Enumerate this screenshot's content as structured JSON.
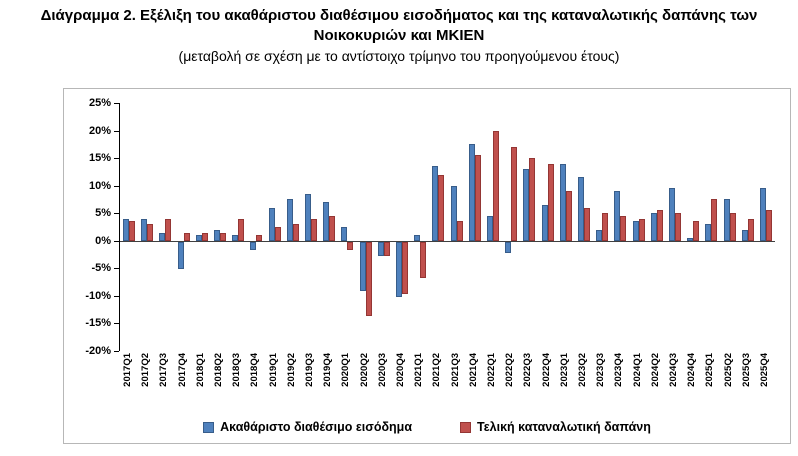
{
  "header": {
    "title_line1": "Διάγραμμα 2. Εξέλιξη του ακαθάριστου διαθέσιμου εισοδήματος και της καταναλωτικής δαπάνης των",
    "title_line2": "Νοικοκυριών και ΜΚΙΕΝ",
    "subtitle": "(μεταβολή σε σχέση με το αντίστοιχο τρίμηνο του προηγούμενου έτους)"
  },
  "chart_data": {
    "type": "bar",
    "title": "Διάγραμμα 2. Εξέλιξη του ακαθάριστου διαθέσιμου εισοδήματος και της καταναλωτικής δαπάνης των Νοικοκυριών και ΜΚΙΕΝ",
    "subtitle": "(μεταβολή σε σχέση με το αντίστοιχο τρίμηνο του προηγούμενου έτους)",
    "grid": false,
    "legend_position": "bottom",
    "ylim": [
      -20,
      25
    ],
    "yticks": [
      {
        "value": 25,
        "label": "25%"
      },
      {
        "value": 20,
        "label": "20%"
      },
      {
        "value": 15,
        "label": "15%"
      },
      {
        "value": 10,
        "label": "10%"
      },
      {
        "value": 5,
        "label": "5%"
      },
      {
        "value": 0,
        "label": "0%"
      },
      {
        "value": -5,
        "label": "-5%"
      },
      {
        "value": -10,
        "label": "-10%"
      },
      {
        "value": -15,
        "label": "-15%"
      },
      {
        "value": -20,
        "label": "-20%"
      }
    ],
    "categories": [
      "2017Q1",
      "2017Q2",
      "2017Q3",
      "2017Q4",
      "2018Q1",
      "2018Q2",
      "2018Q3",
      "2018Q4",
      "2019Q1",
      "2019Q2",
      "2019Q3",
      "2019Q4",
      "2020Q1",
      "2020Q2",
      "2020Q3",
      "2020Q4",
      "2021Q1",
      "2021Q2",
      "2021Q3",
      "2021Q4",
      "2022Q1",
      "2022Q2",
      "2022Q3",
      "2022Q4",
      "2023Q1",
      "2023Q2",
      "2023Q3",
      "2023Q4",
      "2024Q1",
      "2024Q2",
      "2024Q3",
      "2024Q4",
      "2025Q1",
      "2025Q2",
      "2025Q3",
      "2025Q4"
    ],
    "series": [
      {
        "key": "income",
        "name": "Ακαθάριστο διαθέσιμο εισόδημα",
        "color": "#4F81BD",
        "border": "#385D8A",
        "values": [
          4,
          4,
          1.5,
          -5,
          1,
          2,
          1,
          -1.5,
          6,
          7.5,
          8.5,
          7,
          2.5,
          -9,
          -2.5,
          -10,
          1,
          13.5,
          10,
          17.5,
          4.5,
          -2,
          13,
          6.5,
          14,
          11.5,
          2,
          9,
          3.5,
          5,
          9.5,
          0.5,
          3,
          7.5,
          2,
          9.5
        ]
      },
      {
        "key": "consumption",
        "name": "Τελική καταναλωτική δαπάνη",
        "color": "#C0504D",
        "border": "#943634",
        "values": [
          3.5,
          3,
          4,
          1.5,
          1.5,
          1.5,
          4,
          1,
          2.5,
          3,
          4,
          4.5,
          -1.5,
          -13.5,
          -2.5,
          -9.5,
          -6.5,
          12,
          3.5,
          15.5,
          20,
          17,
          15,
          14,
          9,
          6,
          5,
          4.5,
          4,
          5.5,
          5,
          3.5,
          7.5,
          5,
          4,
          5.5
        ]
      }
    ]
  }
}
